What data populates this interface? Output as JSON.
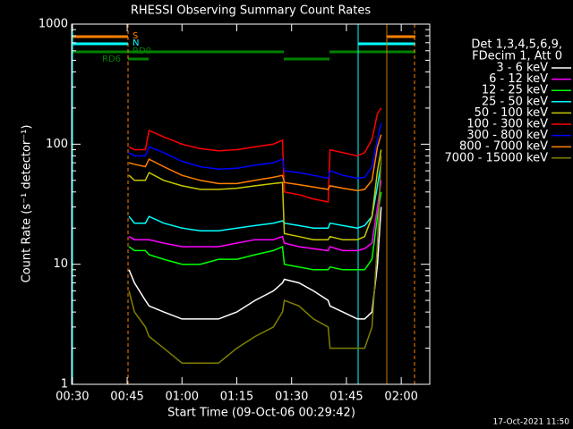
{
  "chart_data": {
    "type": "line",
    "title": "RHESSI Observing Summary Count Rates",
    "x_label": "Start Time (09-Oct-06 00:29:42)",
    "y_label": "Count Rate (s⁻¹ detector⁻¹)",
    "log_y": true,
    "ylim": [
      1,
      1000
    ],
    "yticks": [
      1,
      10,
      100,
      1000
    ],
    "xlim": [
      29.8,
      127.8
    ],
    "xticks": [
      {
        "value": 30,
        "label": "00:30"
      },
      {
        "value": 45,
        "label": "00:45"
      },
      {
        "value": 60,
        "label": "01:00"
      },
      {
        "value": 75,
        "label": "01:15"
      },
      {
        "value": 90,
        "label": "01:30"
      },
      {
        "value": 105,
        "label": "01:45"
      },
      {
        "value": 120,
        "label": "02:00"
      }
    ],
    "legend_header": [
      "Det 1,3,4,5,6,9,",
      "FDecim 1, Att 0"
    ],
    "flags": [
      {
        "label": "S",
        "color": "#ff8000"
      },
      {
        "label": "N",
        "color": "#00ffff"
      },
      {
        "label": "RD0",
        "color": "#008000"
      },
      {
        "label": "RD6",
        "color": "#008000"
      }
    ],
    "footer": "17-Oct-2021 11:50",
    "x": [
      45.5,
      47,
      50,
      51,
      55,
      60,
      65,
      70,
      75,
      80,
      85,
      87.5,
      88,
      92,
      96,
      100,
      100.5,
      104,
      108,
      110,
      112,
      113.5,
      114.5
    ],
    "series": [
      {
        "name": "3 - 6 keV",
        "color": "#ffffff",
        "values": [
          9,
          7,
          5,
          4.5,
          4,
          3.5,
          3.5,
          3.5,
          4,
          5,
          6,
          7,
          7.5,
          7,
          6,
          5,
          4.5,
          4,
          3.5,
          3.5,
          4,
          10,
          30
        ]
      },
      {
        "name": "6 - 12 keV",
        "color": "#ff00ff",
        "values": [
          17,
          16,
          16,
          16,
          15,
          14,
          14,
          14,
          15,
          16,
          16,
          17,
          15,
          14,
          13.5,
          13,
          14,
          13,
          13,
          13.5,
          15,
          30,
          50
        ]
      },
      {
        "name": "12 - 25 keV",
        "color": "#00ff00",
        "values": [
          14,
          13,
          13,
          12,
          11,
          10,
          10,
          11,
          11,
          12,
          13,
          14,
          10,
          9.5,
          9,
          9,
          9.5,
          9,
          9,
          9,
          11,
          25,
          40
        ]
      },
      {
        "name": "25 - 50 keV",
        "color": "#00ffff",
        "values": [
          25,
          22,
          22,
          25,
          22,
          20,
          19,
          19,
          20,
          21,
          22,
          23,
          22,
          21,
          20,
          20,
          22,
          21,
          20,
          21,
          25,
          45,
          70
        ]
      },
      {
        "name": "50 - 100 keV",
        "color": "#c8c800",
        "values": [
          55,
          50,
          50,
          58,
          50,
          45,
          42,
          42,
          43,
          45,
          47,
          48,
          18,
          17,
          16,
          16,
          17,
          16,
          16,
          17,
          25,
          60,
          90
        ]
      },
      {
        "name": "100 - 300 keV",
        "color": "#ff0000",
        "values": [
          95,
          90,
          90,
          130,
          115,
          100,
          92,
          88,
          90,
          95,
          100,
          108,
          40,
          38,
          35,
          33,
          90,
          85,
          80,
          85,
          110,
          180,
          200
        ]
      },
      {
        "name": "300 - 800 keV",
        "color": "#0000ff",
        "values": [
          85,
          80,
          80,
          95,
          85,
          72,
          65,
          62,
          63,
          67,
          70,
          75,
          60,
          58,
          55,
          52,
          60,
          55,
          52,
          53,
          65,
          110,
          150
        ]
      },
      {
        "name": "800 - 7000 keV",
        "color": "#ff8000",
        "values": [
          70,
          68,
          65,
          75,
          65,
          55,
          50,
          47,
          47,
          50,
          53,
          55,
          48,
          46,
          44,
          42,
          45,
          43,
          41,
          42,
          50,
          95,
          120
        ]
      },
      {
        "name": "7000 - 15000 keV",
        "color": "#808000",
        "values": [
          6,
          4,
          3,
          2.5,
          2,
          1.5,
          1.5,
          1.5,
          2,
          2.5,
          3,
          4,
          5,
          4.5,
          3.5,
          3,
          2,
          2,
          2,
          2,
          3,
          15,
          80
        ]
      }
    ]
  }
}
